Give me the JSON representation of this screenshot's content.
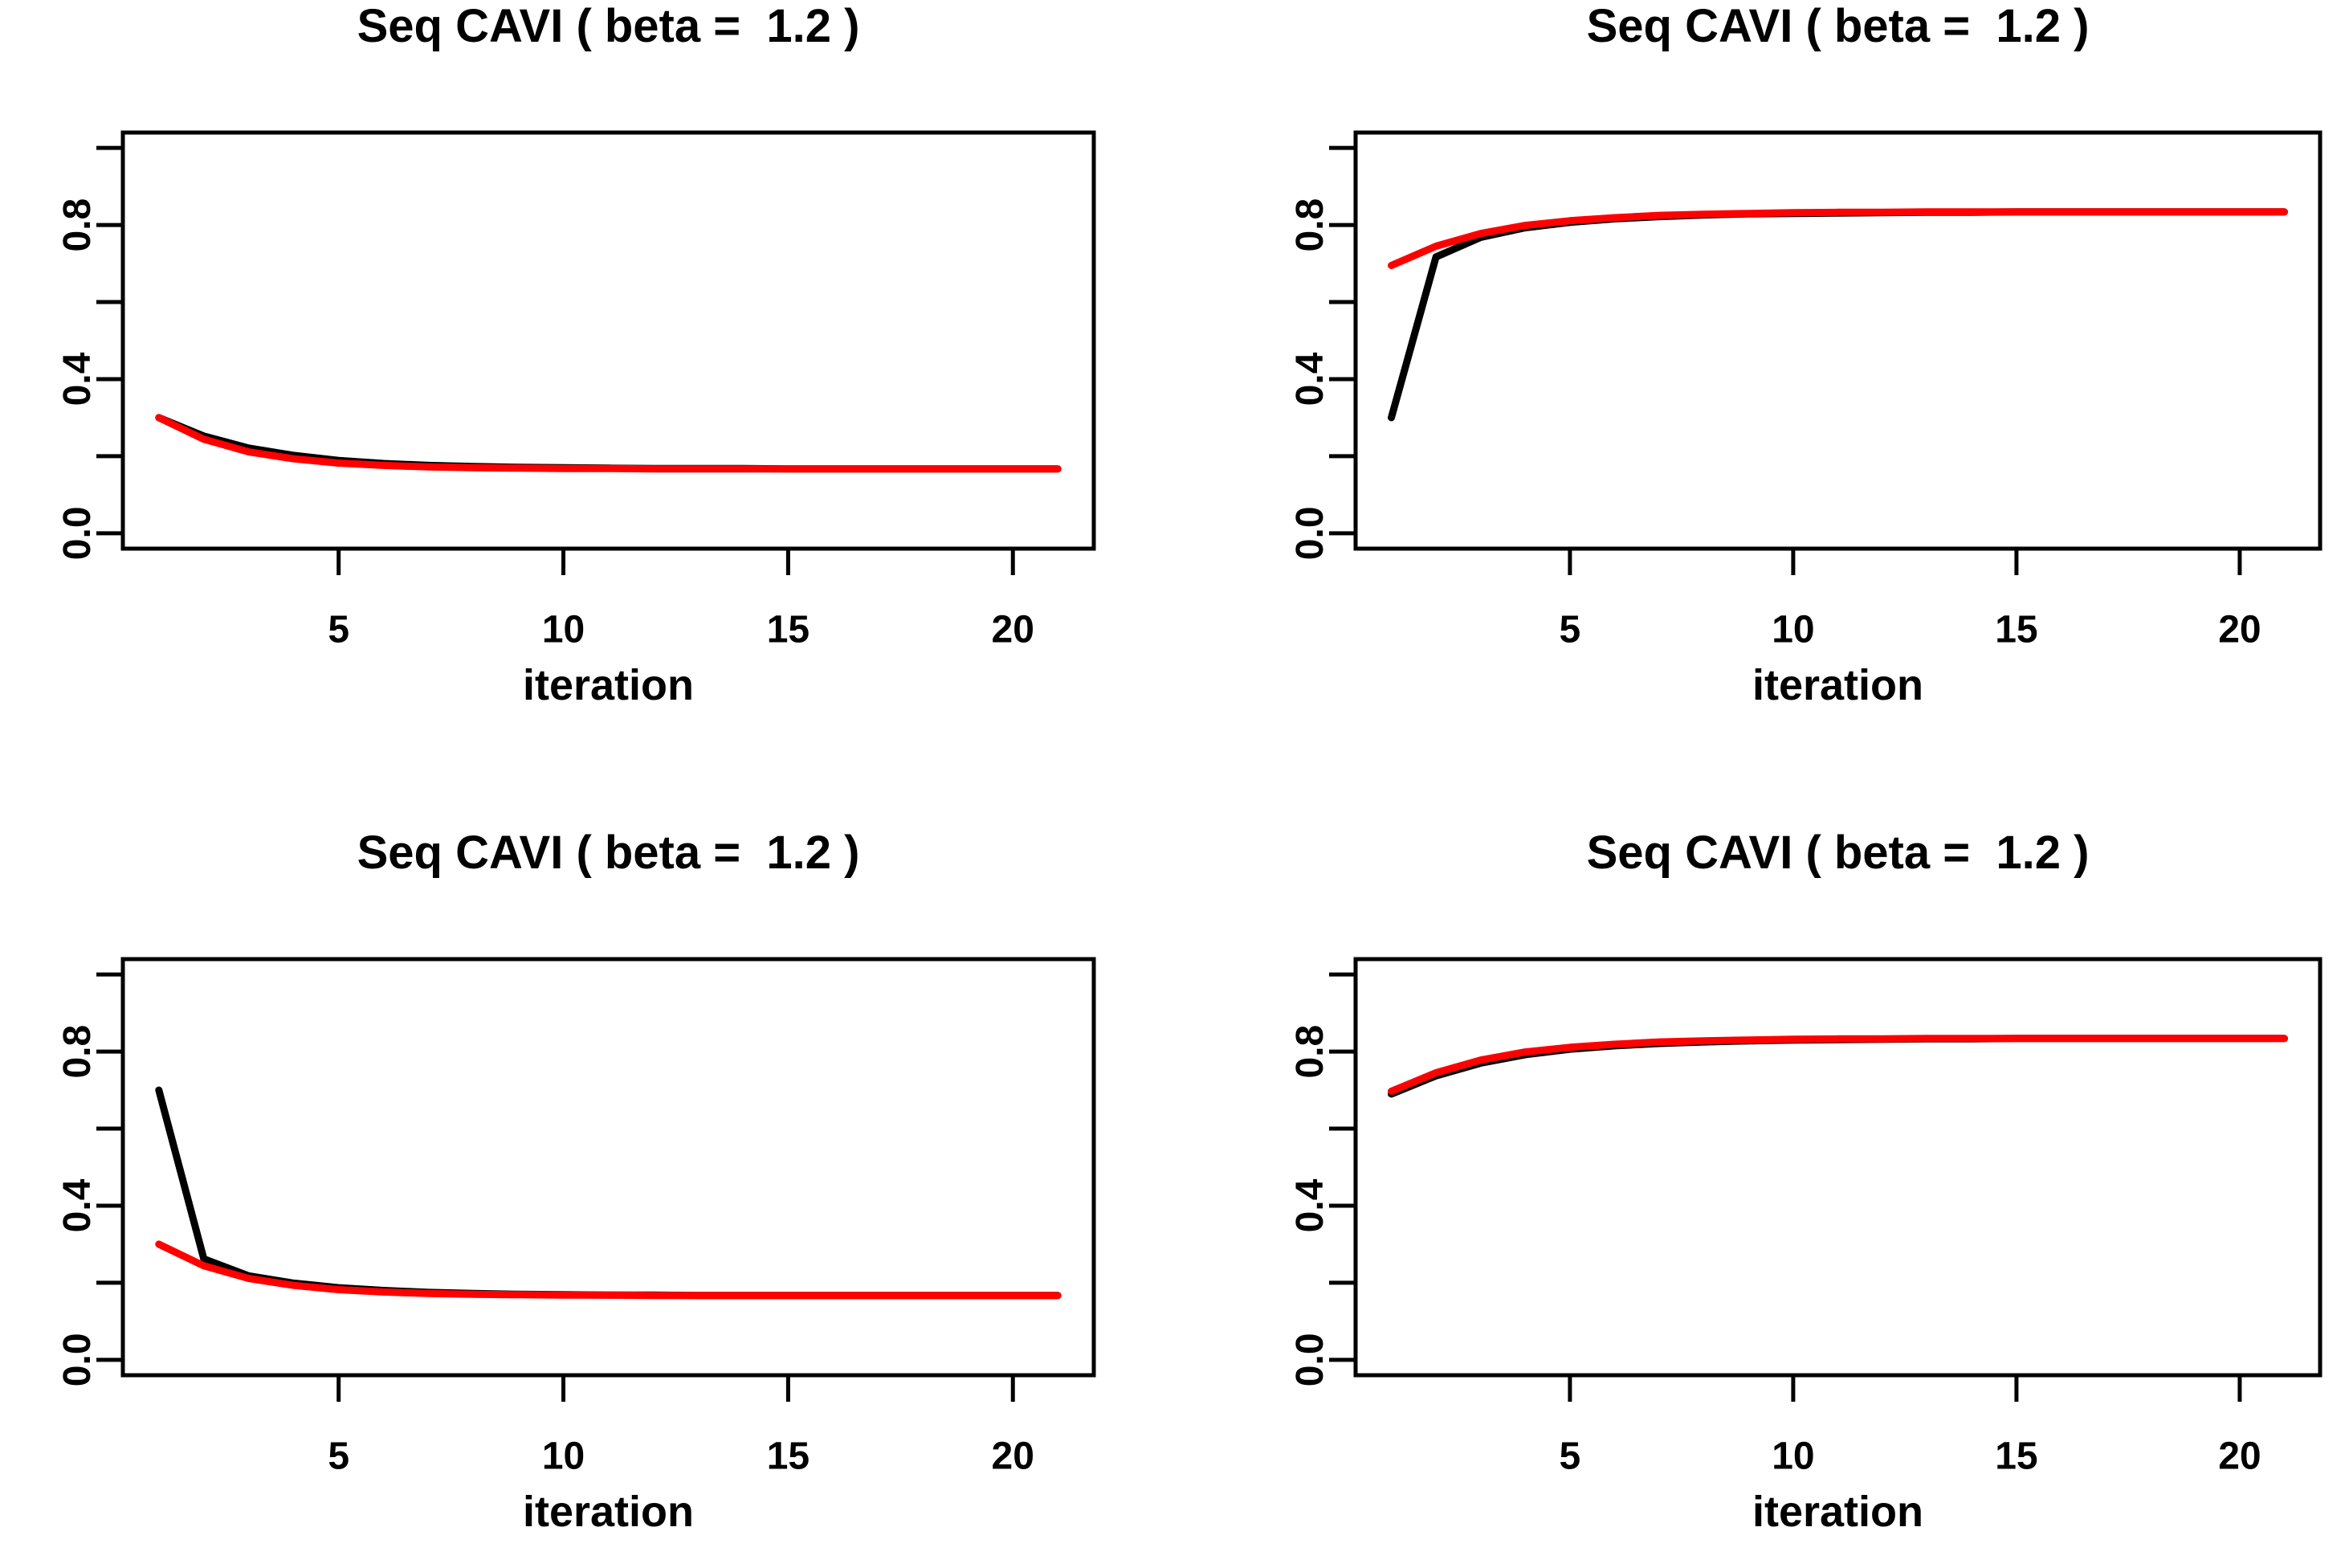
{
  "figure": {
    "background": "#ffffff",
    "panel_title": "Seq CAVI ( beta =  1.2 )",
    "x_axis_label": "iteration"
  },
  "colors": {
    "axis": "#000000",
    "text": "#000000",
    "series_black": "#000000",
    "series_red": "#FF0000"
  },
  "chart_data": [
    {
      "id": "top-left",
      "type": "line",
      "title": "Seq CAVI ( beta =  1.2 )",
      "xlabel": "iteration",
      "ylabel": "",
      "xlim": [
        1,
        21
      ],
      "ylim": [
        0,
        1
      ],
      "grid": false,
      "legend": "none",
      "x_ticks": [
        5,
        10,
        15,
        20
      ],
      "x_tick_labels": [
        "5",
        "10",
        "15",
        "20"
      ],
      "y_ticks": [
        0,
        0.2,
        0.4,
        0.6,
        0.8,
        1.0
      ],
      "y_tick_labels": [
        "0.0",
        "",
        "0.4",
        "",
        "0.8",
        ""
      ],
      "x": [
        1,
        2,
        3,
        4,
        5,
        6,
        7,
        8,
        9,
        10,
        11,
        12,
        13,
        14,
        15,
        16,
        17,
        18,
        19,
        20,
        21
      ],
      "series": [
        {
          "name": "black",
          "color": "#000000",
          "values": [
            0.3,
            0.252,
            0.221,
            0.202,
            0.189,
            0.181,
            0.176,
            0.173,
            0.171,
            0.17,
            0.169,
            0.168,
            0.168,
            0.168,
            0.167,
            0.167,
            0.167,
            0.167,
            0.167,
            0.167,
            0.167
          ]
        },
        {
          "name": "red",
          "color": "#FF0000",
          "values": [
            0.3,
            0.244,
            0.211,
            0.193,
            0.182,
            0.176,
            0.172,
            0.17,
            0.169,
            0.168,
            0.168,
            0.167,
            0.167,
            0.167,
            0.167,
            0.167,
            0.167,
            0.167,
            0.167,
            0.167,
            0.167
          ]
        }
      ]
    },
    {
      "id": "top-right",
      "type": "line",
      "title": "Seq CAVI ( beta =  1.2 )",
      "xlabel": "iteration",
      "ylabel": "",
      "xlim": [
        1,
        21
      ],
      "ylim": [
        0,
        1
      ],
      "grid": false,
      "legend": "none",
      "x_ticks": [
        5,
        10,
        15,
        20
      ],
      "x_tick_labels": [
        "5",
        "10",
        "15",
        "20"
      ],
      "y_ticks": [
        0,
        0.2,
        0.4,
        0.6,
        0.8,
        1.0
      ],
      "y_tick_labels": [
        "0.0",
        "",
        "0.4",
        "",
        "0.8",
        ""
      ],
      "x": [
        1,
        2,
        3,
        4,
        5,
        6,
        7,
        8,
        9,
        10,
        11,
        12,
        13,
        14,
        15,
        16,
        17,
        18,
        19,
        20,
        21
      ],
      "series": [
        {
          "name": "black",
          "color": "#000000",
          "values": [
            0.3,
            0.717,
            0.768,
            0.793,
            0.807,
            0.816,
            0.822,
            0.826,
            0.829,
            0.83,
            0.831,
            0.832,
            0.833,
            0.833,
            0.834,
            0.834,
            0.834,
            0.834,
            0.834,
            0.834,
            0.834
          ]
        },
        {
          "name": "red",
          "color": "#FF0000",
          "values": [
            0.695,
            0.745,
            0.778,
            0.799,
            0.811,
            0.819,
            0.825,
            0.828,
            0.83,
            0.832,
            0.833,
            0.833,
            0.834,
            0.834,
            0.834,
            0.834,
            0.834,
            0.834,
            0.834,
            0.834,
            0.834
          ]
        }
      ]
    },
    {
      "id": "bottom-left",
      "type": "line",
      "title": "Seq CAVI ( beta =  1.2 )",
      "xlabel": "iteration",
      "ylabel": "",
      "xlim": [
        1,
        21
      ],
      "ylim": [
        0,
        1
      ],
      "grid": false,
      "legend": "none",
      "x_ticks": [
        5,
        10,
        15,
        20
      ],
      "x_tick_labels": [
        "5",
        "10",
        "15",
        "20"
      ],
      "y_ticks": [
        0,
        0.2,
        0.4,
        0.6,
        0.8,
        1.0
      ],
      "y_tick_labels": [
        "0.0",
        "",
        "0.4",
        "",
        "0.8",
        ""
      ],
      "x": [
        1,
        2,
        3,
        4,
        5,
        6,
        7,
        8,
        9,
        10,
        11,
        12,
        13,
        14,
        15,
        16,
        17,
        18,
        19,
        20,
        21
      ],
      "series": [
        {
          "name": "black",
          "color": "#000000",
          "values": [
            0.7,
            0.262,
            0.218,
            0.199,
            0.187,
            0.18,
            0.175,
            0.172,
            0.17,
            0.169,
            0.168,
            0.168,
            0.167,
            0.167,
            0.167,
            0.167,
            0.167,
            0.167,
            0.167,
            0.167,
            0.167
          ]
        },
        {
          "name": "red",
          "color": "#FF0000",
          "values": [
            0.3,
            0.244,
            0.211,
            0.193,
            0.182,
            0.176,
            0.172,
            0.17,
            0.169,
            0.168,
            0.168,
            0.167,
            0.167,
            0.167,
            0.167,
            0.167,
            0.167,
            0.167,
            0.167,
            0.167,
            0.167
          ]
        }
      ]
    },
    {
      "id": "bottom-right",
      "type": "line",
      "title": "Seq CAVI ( beta =  1.2 )",
      "xlabel": "iteration",
      "ylabel": "",
      "xlim": [
        1,
        21
      ],
      "ylim": [
        0,
        1
      ],
      "grid": false,
      "legend": "none",
      "x_ticks": [
        5,
        10,
        15,
        20
      ],
      "x_tick_labels": [
        "5",
        "10",
        "15",
        "20"
      ],
      "y_ticks": [
        0,
        0.2,
        0.4,
        0.6,
        0.8,
        1.0
      ],
      "y_tick_labels": [
        "0.0",
        "",
        "0.4",
        "",
        "0.8",
        ""
      ],
      "x": [
        1,
        2,
        3,
        4,
        5,
        6,
        7,
        8,
        9,
        10,
        11,
        12,
        13,
        14,
        15,
        16,
        17,
        18,
        19,
        20,
        21
      ],
      "series": [
        {
          "name": "black",
          "color": "#000000",
          "values": [
            0.69,
            0.737,
            0.77,
            0.792,
            0.806,
            0.815,
            0.821,
            0.825,
            0.828,
            0.83,
            0.831,
            0.832,
            0.833,
            0.833,
            0.834,
            0.834,
            0.834,
            0.834,
            0.834,
            0.834,
            0.834
          ]
        },
        {
          "name": "red",
          "color": "#FF0000",
          "values": [
            0.697,
            0.745,
            0.778,
            0.799,
            0.811,
            0.819,
            0.825,
            0.828,
            0.83,
            0.832,
            0.833,
            0.833,
            0.834,
            0.834,
            0.834,
            0.834,
            0.834,
            0.834,
            0.834,
            0.834,
            0.834
          ]
        }
      ]
    }
  ]
}
